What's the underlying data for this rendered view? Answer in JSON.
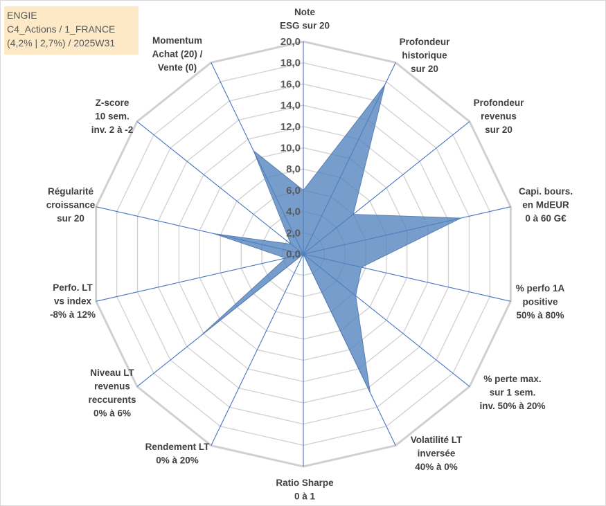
{
  "info": {
    "line1": "ENGIE",
    "line2": "C4_Actions / 1_FRANCE",
    "line3": "(4,2% | 2,7%) / 2025W31"
  },
  "chart_data": {
    "type": "radar",
    "title": "",
    "rlim": [
      0,
      20
    ],
    "ticks": [
      "0,0",
      "2,0",
      "4,0",
      "6,0",
      "8,0",
      "10,0",
      "12,0",
      "14,0",
      "16,0",
      "18,0",
      "20,0"
    ],
    "grid": true,
    "categories": [
      [
        "Note",
        "ESG sur 20"
      ],
      [
        "Profondeur",
        "historique",
        "sur 20"
      ],
      [
        "Profondeur",
        "revenus",
        "sur 20"
      ],
      [
        "Capi. bours.",
        "en MdEUR",
        "0 à 60 G€"
      ],
      [
        "% perfo 1A",
        "positive",
        "50% à 80%"
      ],
      [
        "% perte max.",
        "sur 1 sem.",
        "inv. 50% à 20%"
      ],
      [
        "Volatilité LT",
        "inversée",
        "40% à 0%"
      ],
      [
        "Ratio Sharpe",
        "0 à 1"
      ],
      [
        "Rendement LT",
        "0% à 20%"
      ],
      [
        "Niveau LT",
        "revenus",
        "reccurents",
        "0% à 6%"
      ],
      [
        "Perfo. LT",
        "vs index",
        "-8% à 12%"
      ],
      [
        "Régularité",
        "croissance",
        "sur 20"
      ],
      [
        "Z-score",
        "10 sem.",
        "inv. 2 à -2"
      ],
      [
        "Momentum",
        "Achat (20) /",
        "Vente (0)"
      ]
    ],
    "series": [
      {
        "values": [
          6.0,
          17.7,
          6.0,
          15.2,
          5.6,
          6.3,
          14.5,
          0.0,
          0.0,
          12.4,
          1.7,
          8.6,
          1.5,
          10.8
        ],
        "color": "#4f81bd"
      }
    ]
  }
}
